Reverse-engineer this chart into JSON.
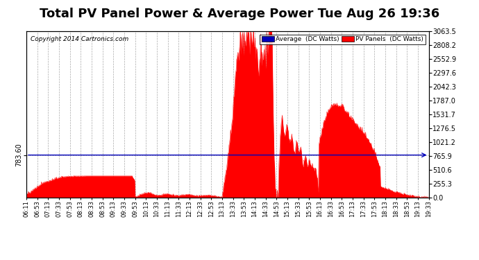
{
  "title": "Total PV Panel Power & Average Power Tue Aug 26 19:36",
  "copyright": "Copyright 2014 Cartronics.com",
  "ylabel_right_ticks": [
    0.0,
    255.3,
    510.6,
    765.9,
    1021.2,
    1276.5,
    1531.7,
    1787.0,
    2042.3,
    2297.6,
    2552.9,
    2808.2,
    3063.5
  ],
  "y_max": 3063.5,
  "y_min": 0.0,
  "hline_value": 783.6,
  "hline_label": "783.60",
  "area_color": "#FF0000",
  "avg_color": "#0000BB",
  "background_color": "#FFFFFF",
  "grid_color": "#AAAAAA",
  "title_fontsize": 13,
  "legend_avg_label": "Average  (DC Watts)",
  "legend_pv_label": "PV Panels  (DC Watts)",
  "x_tick_labels": [
    "06:11",
    "06:53",
    "07:13",
    "07:33",
    "07:53",
    "08:13",
    "08:33",
    "08:53",
    "09:13",
    "09:33",
    "09:53",
    "10:13",
    "10:33",
    "11:13",
    "11:33",
    "12:13",
    "12:33",
    "12:53",
    "13:13",
    "13:33",
    "13:53",
    "14:13",
    "14:33",
    "14:53",
    "15:13",
    "15:33",
    "15:53",
    "16:13",
    "16:33",
    "16:53",
    "17:13",
    "17:33",
    "17:53",
    "18:13",
    "18:33",
    "18:53",
    "19:13",
    "19:33"
  ]
}
